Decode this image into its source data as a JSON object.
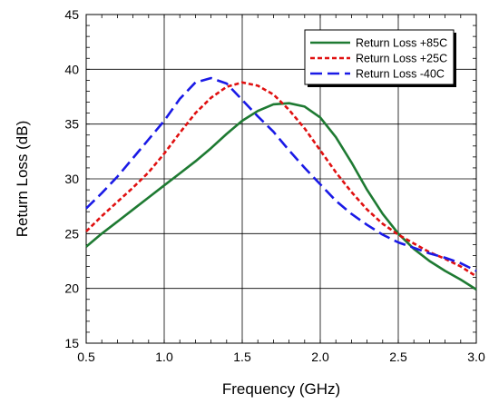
{
  "chart_data": {
    "type": "line",
    "title": "",
    "xlabel": "Frequency (GHz)",
    "ylabel": "Return Loss (dB)",
    "xlim": [
      0.5,
      3.0
    ],
    "ylim": [
      15,
      45
    ],
    "xticks": [
      "0.5",
      "1.0",
      "1.5",
      "2.0",
      "2.5",
      "3.0"
    ],
    "yticks": [
      "15",
      "20",
      "25",
      "30",
      "35",
      "40",
      "45"
    ],
    "grid": true,
    "legend_position": "top-right",
    "series": [
      {
        "name": "Return Loss +85C",
        "color": "#1e7a32",
        "dash": "solid",
        "x": [
          0.5,
          0.6,
          0.7,
          0.8,
          0.9,
          1.0,
          1.1,
          1.2,
          1.3,
          1.4,
          1.5,
          1.6,
          1.7,
          1.8,
          1.9,
          2.0,
          2.1,
          2.2,
          2.3,
          2.4,
          2.5,
          2.6,
          2.7,
          2.8,
          2.9,
          3.0
        ],
        "y": [
          23.8,
          25.0,
          26.1,
          27.2,
          28.3,
          29.4,
          30.5,
          31.6,
          32.8,
          34.1,
          35.3,
          36.2,
          36.8,
          36.9,
          36.6,
          35.6,
          33.8,
          31.5,
          29.0,
          26.8,
          25.0,
          23.6,
          22.5,
          21.6,
          20.8,
          19.9
        ]
      },
      {
        "name": "Return Loss +25C",
        "color": "#e01010",
        "dash": "short",
        "x": [
          0.5,
          0.6,
          0.7,
          0.8,
          0.9,
          1.0,
          1.1,
          1.2,
          1.3,
          1.4,
          1.5,
          1.6,
          1.7,
          1.8,
          1.9,
          2.0,
          2.1,
          2.2,
          2.3,
          2.4,
          2.5,
          2.6,
          2.7,
          2.8,
          2.9,
          3.0
        ],
        "y": [
          25.2,
          26.6,
          27.9,
          29.2,
          30.6,
          32.3,
          34.2,
          36.0,
          37.4,
          38.4,
          38.8,
          38.5,
          37.7,
          36.3,
          34.6,
          32.6,
          30.6,
          28.8,
          27.2,
          25.9,
          24.9,
          24.1,
          23.3,
          22.7,
          22.0,
          21.1
        ]
      },
      {
        "name": "Return Loss -40C",
        "color": "#1a1ae6",
        "dash": "long",
        "x": [
          0.5,
          0.6,
          0.7,
          0.8,
          0.9,
          1.0,
          1.1,
          1.2,
          1.3,
          1.4,
          1.5,
          1.6,
          1.7,
          1.8,
          1.9,
          2.0,
          2.1,
          2.2,
          2.3,
          2.4,
          2.5,
          2.6,
          2.7,
          2.8,
          2.9,
          3.0
        ],
        "y": [
          27.3,
          28.7,
          30.2,
          31.9,
          33.6,
          35.3,
          37.3,
          38.8,
          39.2,
          38.7,
          37.2,
          35.7,
          34.3,
          32.6,
          31.0,
          29.5,
          28.0,
          26.8,
          25.8,
          24.9,
          24.2,
          23.7,
          23.2,
          22.8,
          22.3,
          21.6
        ]
      }
    ]
  }
}
